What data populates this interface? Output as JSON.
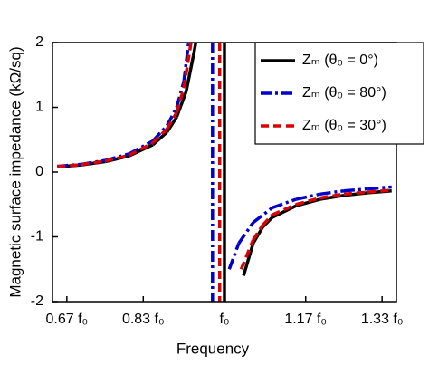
{
  "chart_data": {
    "type": "line",
    "xlabel": "Frequency",
    "ylabel": "Magnetic surface impedance (kΩ/sq)",
    "xlim": [
      0.64,
      1.36
    ],
    "ylim": [
      -2,
      2
    ],
    "xticks": [
      {
        "value": 0.67,
        "label": "0.67 f₀"
      },
      {
        "value": 0.83,
        "label": "0.83 f₀"
      },
      {
        "value": 1,
        "label": "f₀"
      },
      {
        "value": 1.17,
        "label": "1.17 f₀"
      },
      {
        "value": 1.33,
        "label": "1.33 f₀"
      }
    ],
    "yticks": [
      -2,
      -1,
      0,
      1,
      2
    ],
    "series": [
      {
        "name": "Zₘ (θ₀ = 0°)",
        "color": "#000000",
        "linestyle": "solid",
        "x": [
          0.65,
          0.7,
          0.75,
          0.8,
          0.85,
          0.88,
          0.9,
          0.92,
          0.935,
          0.94,
          1.0,
          1.0,
          1.0,
          1.03,
          1.04,
          1.06,
          1.08,
          1.1,
          1.15,
          1.2,
          1.25,
          1.3,
          1.35
        ],
        "values": [
          0.08,
          0.11,
          0.16,
          0.25,
          0.42,
          0.62,
          0.85,
          1.25,
          1.8,
          2.0,
          null,
          2,
          -2,
          null,
          -1.6,
          -1.1,
          -0.85,
          -0.7,
          -0.52,
          -0.42,
          -0.36,
          -0.32,
          -0.29
        ]
      },
      {
        "name": "Zₘ (θ₀ = 80°)",
        "color": "#0000cc",
        "linestyle": "dashdot",
        "x": [
          0.65,
          0.7,
          0.75,
          0.8,
          0.85,
          0.88,
          0.9,
          0.915,
          0.925,
          0.975,
          0.975,
          0.975,
          0.995,
          1.01,
          1.03,
          1.06,
          1.1,
          1.15,
          1.2,
          1.25,
          1.3,
          1.35
        ],
        "values": [
          0.09,
          0.12,
          0.18,
          0.28,
          0.48,
          0.72,
          1.0,
          1.4,
          2.0,
          null,
          2,
          -2,
          null,
          -1.5,
          -1.1,
          -0.78,
          -0.55,
          -0.42,
          -0.34,
          -0.29,
          -0.26,
          -0.23
        ]
      },
      {
        "name": "Zₘ (θ₀ = 30°)",
        "color": "#dd0000",
        "linestyle": "dashed",
        "x": [
          0.65,
          0.7,
          0.75,
          0.8,
          0.85,
          0.88,
          0.9,
          0.915,
          0.93,
          0.99,
          0.99,
          0.99,
          1.02,
          1.035,
          1.06,
          1.08,
          1.1,
          1.15,
          1.2,
          1.25,
          1.3,
          1.35
        ],
        "values": [
          0.085,
          0.115,
          0.17,
          0.26,
          0.45,
          0.67,
          0.92,
          1.3,
          2.0,
          null,
          2,
          -2,
          null,
          -1.5,
          -1.05,
          -0.82,
          -0.66,
          -0.5,
          -0.4,
          -0.34,
          -0.31,
          -0.28
        ]
      }
    ],
    "legend": "upper right"
  }
}
